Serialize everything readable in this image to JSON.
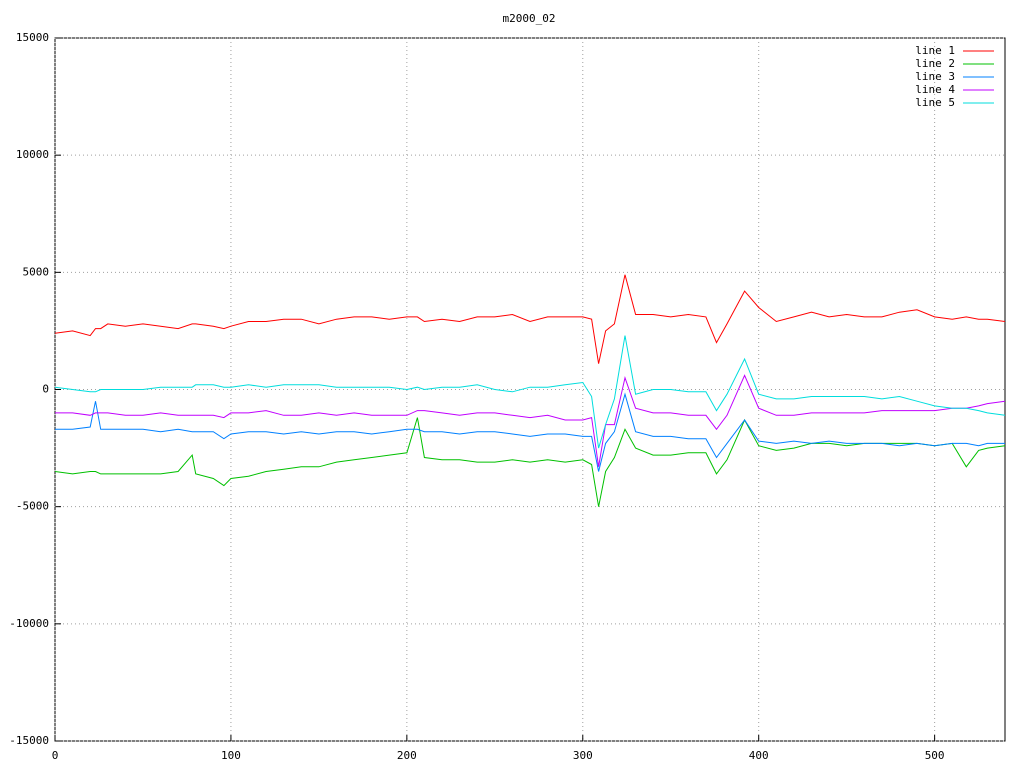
{
  "chart_data": {
    "type": "line",
    "title": "m2000_02",
    "x": [
      0,
      10,
      20,
      23,
      26,
      30,
      40,
      50,
      60,
      70,
      78,
      80,
      90,
      96,
      100,
      110,
      120,
      130,
      140,
      150,
      160,
      170,
      180,
      190,
      200,
      206,
      210,
      220,
      230,
      240,
      250,
      260,
      270,
      280,
      290,
      300,
      305,
      309,
      313,
      318,
      324,
      330,
      340,
      350,
      360,
      370,
      376,
      382,
      392,
      400,
      410,
      420,
      430,
      440,
      450,
      460,
      470,
      480,
      490,
      500,
      510,
      518,
      525,
      530,
      540
    ],
    "xlim": [
      0,
      540
    ],
    "xticks": [
      0,
      100,
      200,
      300,
      400,
      500
    ],
    "ylim": [
      -15000,
      15000
    ],
    "yticks": [
      -15000,
      -10000,
      -5000,
      0,
      5000,
      10000,
      15000
    ],
    "grid": true,
    "legend": "top-right",
    "series": [
      {
        "name": "line 1",
        "color": "#ff0000",
        "values": [
          2400,
          2500,
          2300,
          2600,
          2600,
          2800,
          2700,
          2800,
          2700,
          2600,
          2800,
          2800,
          2700,
          2600,
          2700,
          2900,
          2900,
          3000,
          3000,
          2800,
          3000,
          3100,
          3100,
          3000,
          3100,
          3100,
          2900,
          3000,
          2900,
          3100,
          3100,
          3200,
          2900,
          3100,
          3100,
          3100,
          3000,
          1100,
          2500,
          2800,
          4900,
          3200,
          3200,
          3100,
          3200,
          3100,
          2000,
          2800,
          4200,
          3500,
          2900,
          3100,
          3300,
          3100,
          3200,
          3100,
          3100,
          3300,
          3400,
          3100,
          3000,
          3100,
          3000,
          3000,
          2900
        ]
      },
      {
        "name": "line 2",
        "color": "#00c000",
        "values": [
          -3500,
          -3600,
          -3500,
          -3500,
          -3600,
          -3600,
          -3600,
          -3600,
          -3600,
          -3500,
          -2800,
          -3600,
          -3800,
          -4100,
          -3800,
          -3700,
          -3500,
          -3400,
          -3300,
          -3300,
          -3100,
          -3000,
          -2900,
          -2800,
          -2700,
          -1200,
          -2900,
          -3000,
          -3000,
          -3100,
          -3100,
          -3000,
          -3100,
          -3000,
          -3100,
          -3000,
          -3200,
          -5000,
          -3500,
          -2900,
          -1700,
          -2500,
          -2800,
          -2800,
          -2700,
          -2700,
          -3600,
          -3000,
          -1300,
          -2400,
          -2600,
          -2500,
          -2300,
          -2300,
          -2400,
          -2300,
          -2300,
          -2300,
          -2300,
          -2400,
          -2300,
          -3300,
          -2600,
          -2500,
          -2400
        ]
      },
      {
        "name": "line 3",
        "color": "#0080ff",
        "values": [
          -1700,
          -1700,
          -1600,
          -500,
          -1700,
          -1700,
          -1700,
          -1700,
          -1800,
          -1700,
          -1800,
          -1800,
          -1800,
          -2100,
          -1900,
          -1800,
          -1800,
          -1900,
          -1800,
          -1900,
          -1800,
          -1800,
          -1900,
          -1800,
          -1700,
          -1700,
          -1800,
          -1800,
          -1900,
          -1800,
          -1800,
          -1900,
          -2000,
          -1900,
          -1900,
          -2000,
          -2000,
          -3500,
          -2300,
          -1800,
          -200,
          -1800,
          -2000,
          -2000,
          -2100,
          -2100,
          -2900,
          -2300,
          -1300,
          -2200,
          -2300,
          -2200,
          -2300,
          -2200,
          -2300,
          -2300,
          -2300,
          -2400,
          -2300,
          -2400,
          -2300,
          -2300,
          -2400,
          -2300,
          -2300
        ]
      },
      {
        "name": "line 4",
        "color": "#c000ff",
        "values": [
          -1000,
          -1000,
          -1100,
          -1000,
          -1000,
          -1000,
          -1100,
          -1100,
          -1000,
          -1100,
          -1100,
          -1100,
          -1100,
          -1200,
          -1000,
          -1000,
          -900,
          -1100,
          -1100,
          -1000,
          -1100,
          -1000,
          -1100,
          -1100,
          -1100,
          -900,
          -900,
          -1000,
          -1100,
          -1000,
          -1000,
          -1100,
          -1200,
          -1100,
          -1300,
          -1300,
          -1200,
          -3300,
          -1500,
          -1500,
          500,
          -800,
          -1000,
          -1000,
          -1100,
          -1100,
          -1700,
          -1100,
          600,
          -800,
          -1100,
          -1100,
          -1000,
          -1000,
          -1000,
          -1000,
          -900,
          -900,
          -900,
          -900,
          -800,
          -800,
          -700,
          -600,
          -500
        ]
      },
      {
        "name": "line 5",
        "color": "#00dddd",
        "values": [
          100,
          0,
          -100,
          -100,
          0,
          0,
          0,
          0,
          100,
          100,
          100,
          200,
          200,
          100,
          100,
          200,
          100,
          200,
          200,
          200,
          100,
          100,
          100,
          100,
          0,
          100,
          0,
          100,
          100,
          200,
          0,
          -100,
          100,
          100,
          200,
          300,
          -300,
          -2500,
          -1500,
          -400,
          2300,
          -200,
          0,
          0,
          -100,
          -100,
          -900,
          -200,
          1300,
          -200,
          -400,
          -400,
          -300,
          -300,
          -300,
          -300,
          -400,
          -300,
          -500,
          -700,
          -800,
          -800,
          -900,
          -1000,
          -1100
        ]
      }
    ]
  }
}
